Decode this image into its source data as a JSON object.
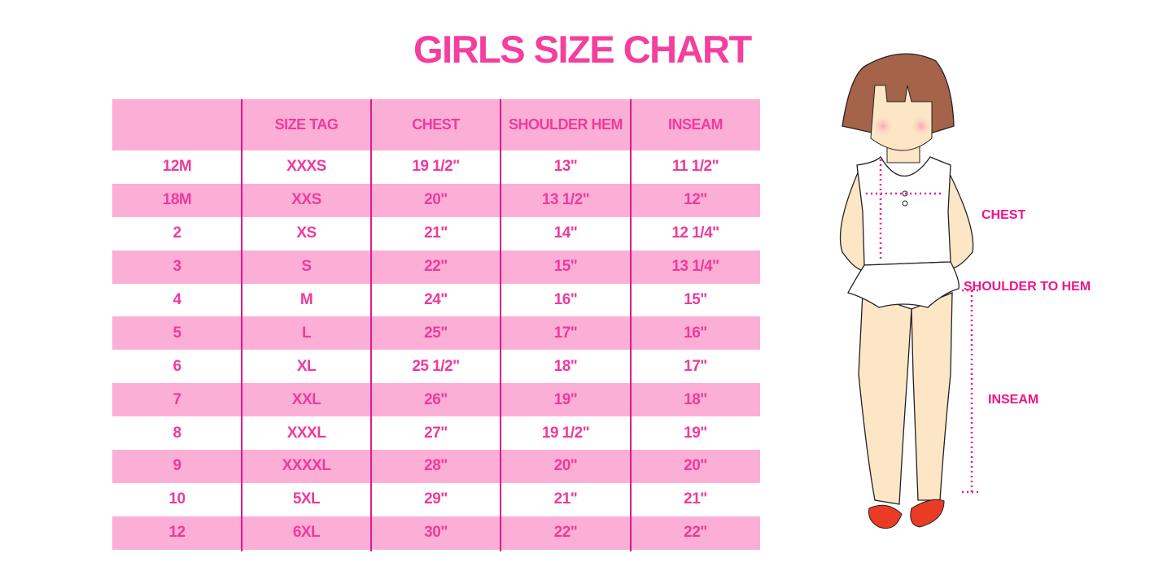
{
  "title": "GIRLS SIZE CHART",
  "table": {
    "headers": [
      "",
      "SIZE TAG",
      "CHEST",
      "SHOULDER HEM",
      "INSEAM"
    ],
    "rows": [
      [
        "12M",
        "XXXS",
        "19 1/2\"",
        "13\"",
        "11 1/2\""
      ],
      [
        "18M",
        "XXS",
        "20\"",
        "13 1/2\"",
        "12\""
      ],
      [
        "2",
        "XS",
        "21\"",
        "14\"",
        "12 1/4\""
      ],
      [
        "3",
        "S",
        "22\"",
        "15\"",
        "13 1/4\""
      ],
      [
        "4",
        "M",
        "24\"",
        "16\"",
        "15\""
      ],
      [
        "5",
        "L",
        "25\"",
        "17\"",
        "16\""
      ],
      [
        "6",
        "XL",
        "25 1/2\"",
        "18\"",
        "17\""
      ],
      [
        "7",
        "XXL",
        "26\"",
        "19\"",
        "18\""
      ],
      [
        "8",
        "XXXL",
        "27\"",
        "19 1/2\"",
        "19\""
      ],
      [
        "9",
        "XXXXL",
        "28\"",
        "20\"",
        "20\""
      ],
      [
        "10",
        "5XL",
        "29\"",
        "21\"",
        "21\""
      ],
      [
        "12",
        "6XL",
        "30\"",
        "22\"",
        "22\""
      ]
    ]
  },
  "illustration": {
    "labels": {
      "chest": "CHEST",
      "shoulder": "SHOULDER TO HEM",
      "inseam": "INSEAM"
    }
  },
  "colors": {
    "accent": "#f43f9f",
    "band": "#fcafd6",
    "divider": "#e3188a"
  }
}
